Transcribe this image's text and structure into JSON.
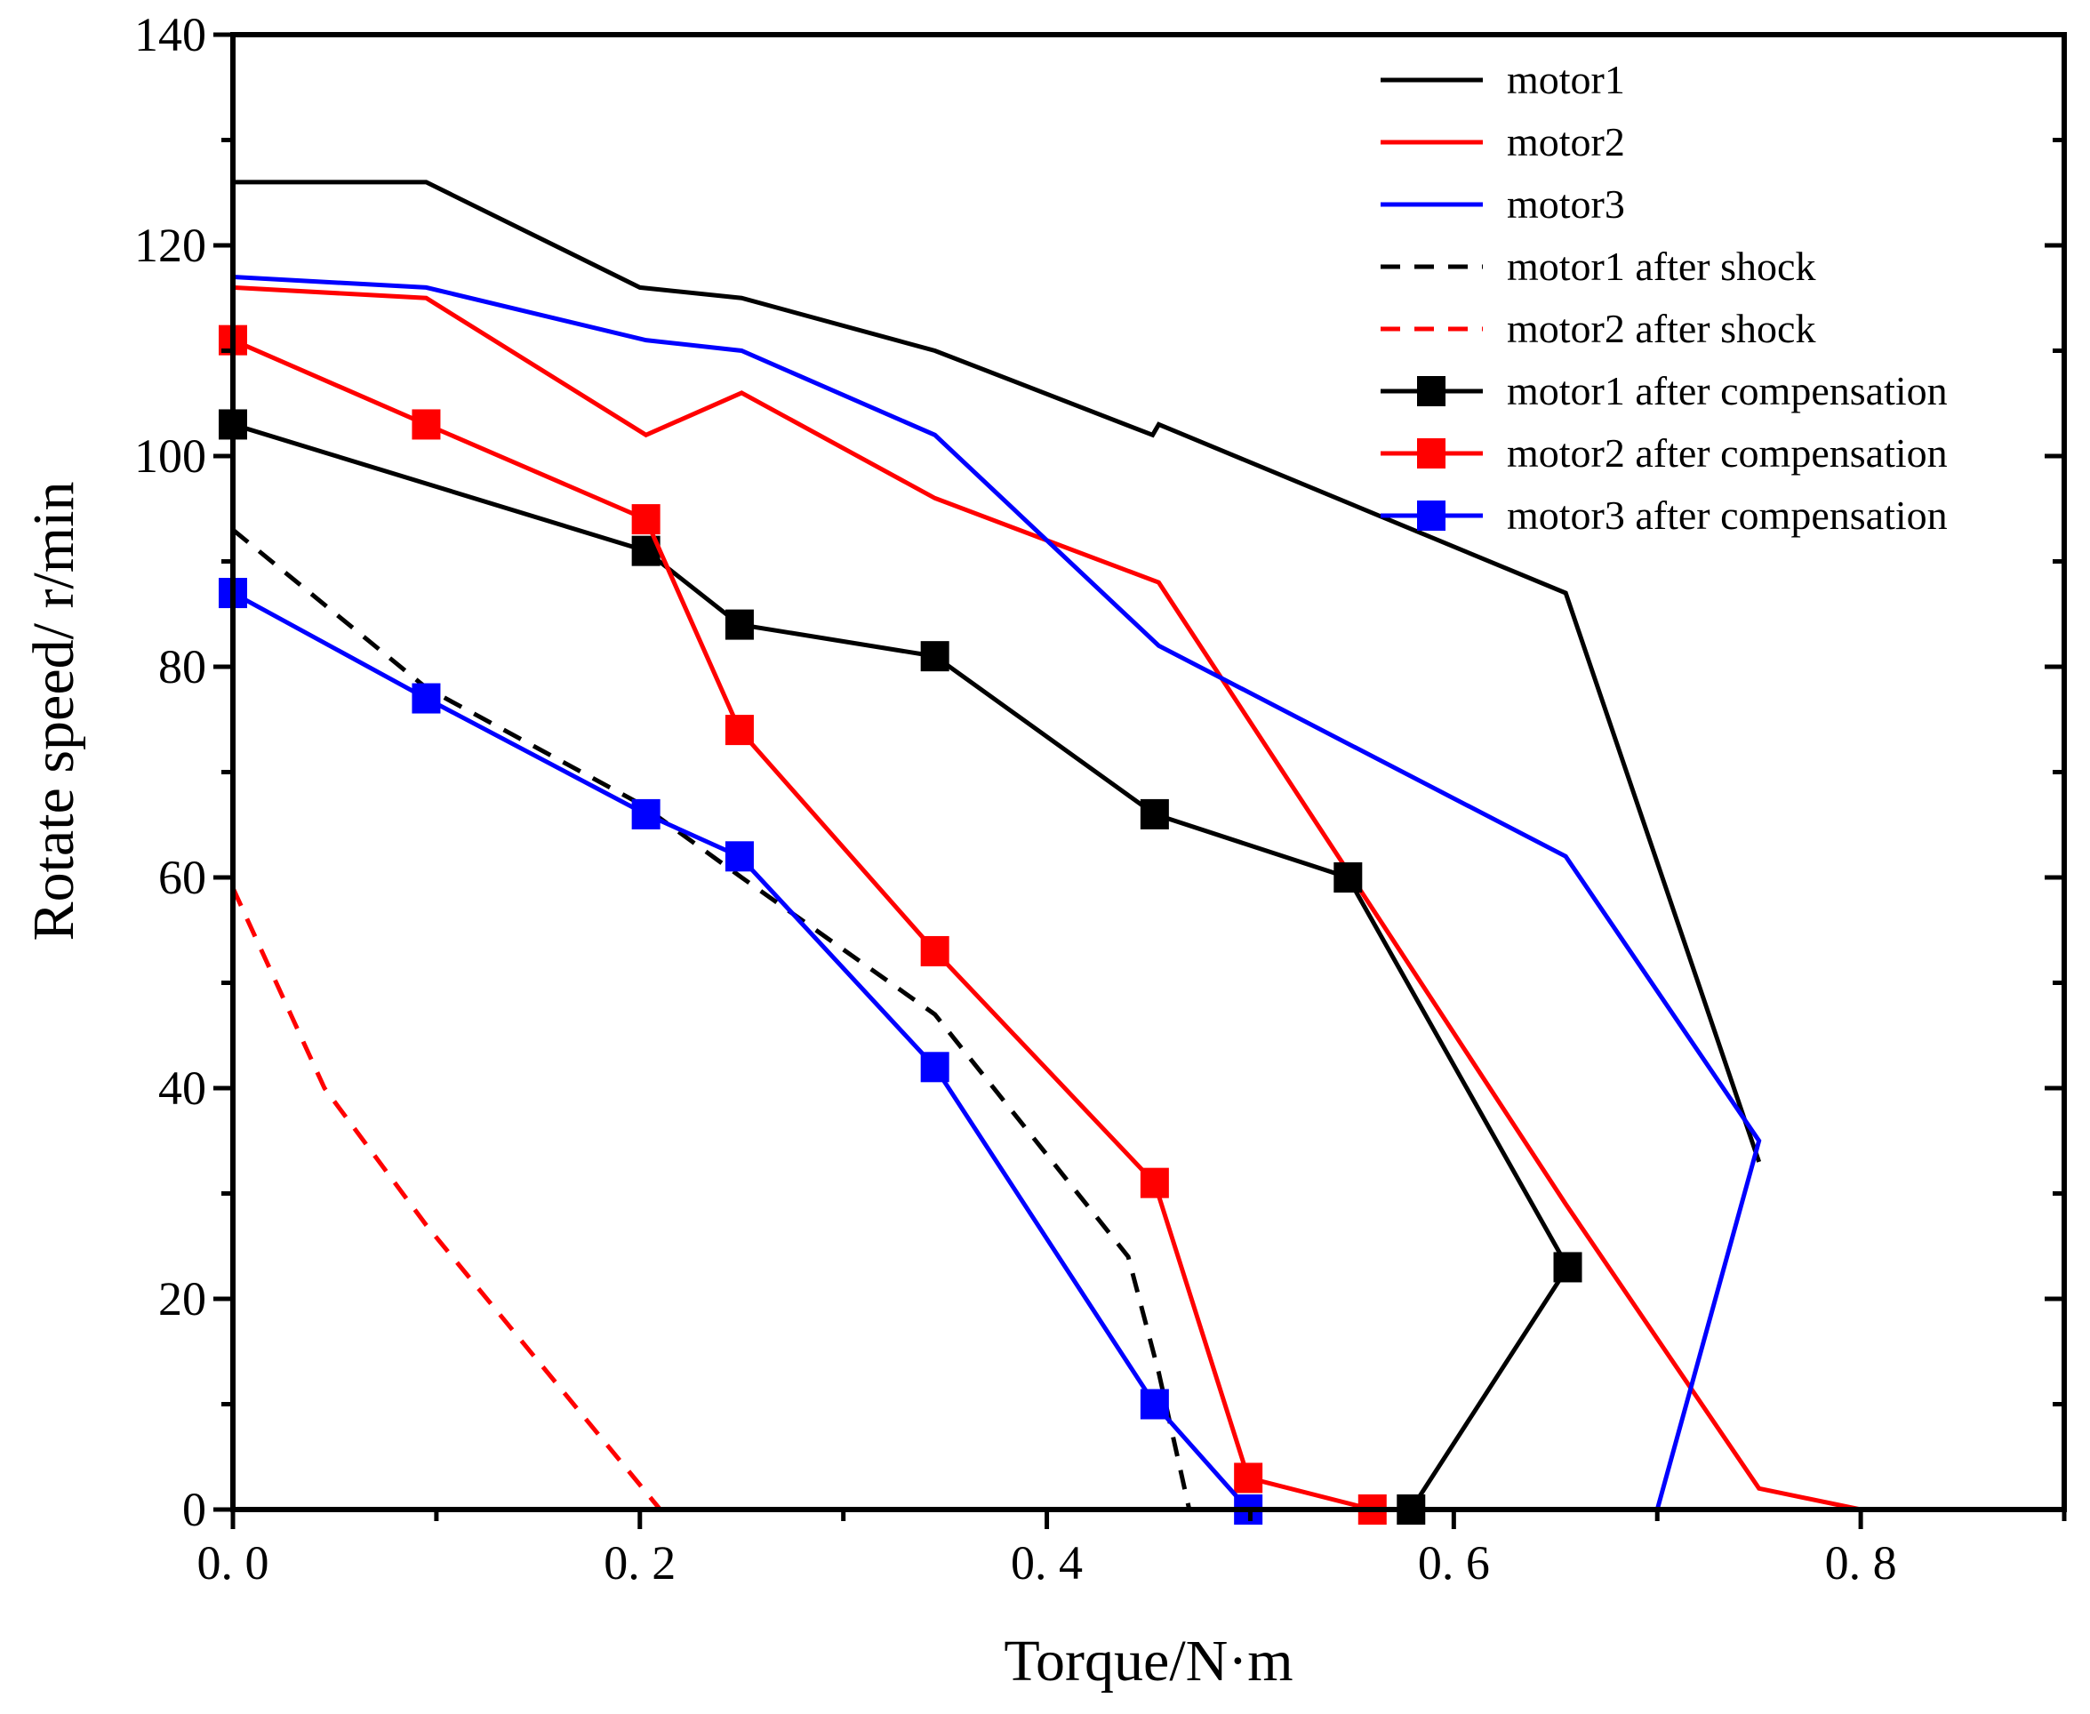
{
  "chart_data": {
    "type": "line",
    "title": "",
    "xlabel": "Torque/N·m",
    "ylabel": "Rotate speed/ r/min",
    "xlim": [
      0,
      0.9
    ],
    "ylim": [
      0,
      140
    ],
    "xticks": [
      0.0,
      0.2,
      0.4,
      0.6,
      0.8
    ],
    "xtick_labels": [
      "0. 0",
      "0. 2",
      "0. 4",
      "0. 6",
      "0. 8"
    ],
    "yticks": [
      0,
      20,
      40,
      60,
      80,
      100,
      120,
      140
    ],
    "ytick_labels": [
      "0",
      "20",
      "40",
      "60",
      "80",
      "100",
      "120",
      "140"
    ],
    "legend_position": "top-right",
    "series": [
      {
        "name": "motor1",
        "color": "#000000",
        "dash": false,
        "marker": false,
        "points": [
          [
            0,
            126
          ],
          [
            0.095,
            126
          ],
          [
            0.2,
            116
          ],
          [
            0.25,
            115
          ],
          [
            0.345,
            110
          ],
          [
            0.452,
            102
          ],
          [
            0.455,
            103
          ],
          [
            0.655,
            87
          ],
          [
            0.75,
            33
          ]
        ]
      },
      {
        "name": "motor2",
        "color": "#ff0000",
        "dash": false,
        "marker": false,
        "points": [
          [
            0,
            116
          ],
          [
            0.095,
            115
          ],
          [
            0.203,
            102
          ],
          [
            0.25,
            106
          ],
          [
            0.345,
            96
          ],
          [
            0.455,
            88
          ],
          [
            0.55,
            60
          ],
          [
            0.655,
            29
          ],
          [
            0.75,
            2
          ],
          [
            0.8,
            0
          ]
        ]
      },
      {
        "name": "motor3",
        "color": "#0000ff",
        "dash": false,
        "marker": false,
        "points": [
          [
            0,
            117
          ],
          [
            0.095,
            116
          ],
          [
            0.203,
            111
          ],
          [
            0.25,
            110
          ],
          [
            0.345,
            102
          ],
          [
            0.455,
            82
          ],
          [
            0.655,
            62
          ],
          [
            0.75,
            35
          ],
          [
            0.7,
            0
          ]
        ]
      },
      {
        "name": "motor1 after shock",
        "color": "#000000",
        "dash": true,
        "marker": false,
        "points": [
          [
            0,
            93
          ],
          [
            0.095,
            78
          ],
          [
            0.2,
            67
          ],
          [
            0.25,
            60
          ],
          [
            0.345,
            47
          ],
          [
            0.44,
            24
          ],
          [
            0.455,
            13
          ],
          [
            0.47,
            0
          ]
        ]
      },
      {
        "name": "motor2 after shock",
        "color": "#ff0000",
        "dash": true,
        "marker": false,
        "points": [
          [
            0,
            59
          ],
          [
            0.045,
            40
          ],
          [
            0.095,
            27
          ],
          [
            0.21,
            0
          ]
        ]
      },
      {
        "name": "motor1 after compensation",
        "color": "#000000",
        "dash": false,
        "marker": true,
        "points": [
          [
            0,
            103
          ],
          [
            0.203,
            91
          ],
          [
            0.249,
            84
          ],
          [
            0.345,
            81
          ],
          [
            0.453,
            66
          ],
          [
            0.548,
            60
          ],
          [
            0.656,
            23
          ],
          [
            0.579,
            0
          ]
        ]
      },
      {
        "name": "motor2 after compensation",
        "color": "#ff0000",
        "dash": false,
        "marker": true,
        "points": [
          [
            0,
            111
          ],
          [
            0.095,
            103
          ],
          [
            0.203,
            94
          ],
          [
            0.249,
            74
          ],
          [
            0.345,
            53
          ],
          [
            0.453,
            31
          ],
          [
            0.499,
            3
          ],
          [
            0.56,
            0
          ]
        ]
      },
      {
        "name": "motor3 after compensation",
        "color": "#0000ff",
        "dash": false,
        "marker": true,
        "points": [
          [
            0,
            87
          ],
          [
            0.095,
            77
          ],
          [
            0.203,
            66
          ],
          [
            0.249,
            62
          ],
          [
            0.345,
            42
          ],
          [
            0.453,
            10
          ],
          [
            0.499,
            0
          ]
        ]
      }
    ]
  }
}
